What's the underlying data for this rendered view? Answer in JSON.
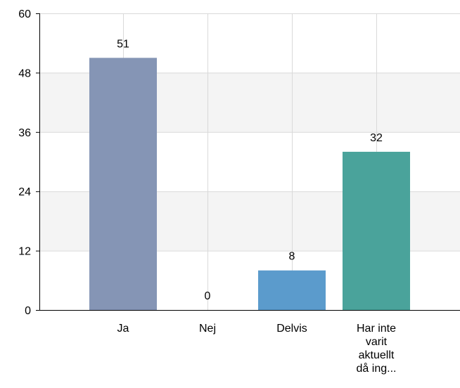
{
  "chart_data": {
    "type": "bar",
    "categories": [
      "Ja",
      "Nej",
      "Delvis",
      "Har inte varit aktuellt då ing..."
    ],
    "category_lines": [
      [
        "Ja"
      ],
      [
        "Nej"
      ],
      [
        "Delvis"
      ],
      [
        "Har inte",
        "varit",
        "aktuellt",
        "då ing..."
      ]
    ],
    "values": [
      51,
      0,
      8,
      32
    ],
    "bar_colors": [
      "#8595b5",
      "#8595b5",
      "#5b9bcc",
      "#4aa39b"
    ],
    "ylim": [
      0,
      60
    ],
    "yticks": [
      0,
      12,
      24,
      36,
      48,
      60
    ],
    "title": "",
    "xlabel": "",
    "ylabel": "",
    "grid": true,
    "band_color": "#f4f4f4",
    "grid_color": "#d9d9d9",
    "axis_color": "#000000"
  }
}
